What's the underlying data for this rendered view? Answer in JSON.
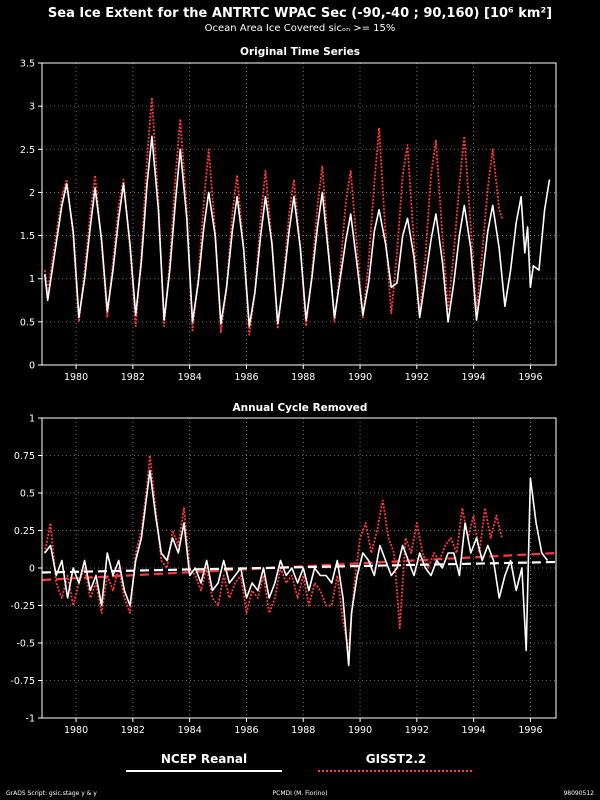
{
  "header": {
    "title": "Sea Ice Extent for the ANTRTC WPAC Sec (-90,-40 ; 90,160) [10⁶ km²]",
    "subtitle": "Ocean Area Ice Covered sicₒₙ >= 15%"
  },
  "legend": {
    "entries": [
      {
        "label": "NCEP Reanal",
        "color": "#ffffff",
        "style": "solid"
      },
      {
        "label": "GISST2.2",
        "color": "#ff3a3a",
        "style": "dotted"
      }
    ]
  },
  "footer": {
    "left": "GrADS Script: gsic.stage y & y",
    "center": "PCMDI (M. Fiorino)",
    "right": "98090512"
  },
  "chart_data": [
    {
      "type": "line",
      "title": "Original Time Series",
      "xlim": [
        1978.8,
        1996.9
      ],
      "ylim": [
        0,
        3.5
      ],
      "xticks": [
        "1980",
        "1982",
        "1984",
        "1986",
        "1988",
        "1990",
        "1992",
        "1994",
        "1996"
      ],
      "yticks": [
        "0",
        "0.5",
        "1",
        "1.5",
        "2",
        "2.5",
        "3",
        "3.5"
      ],
      "grid": true,
      "series": [
        {
          "name": "NCEP Reanal",
          "color": "#ffffff",
          "style": "solid",
          "x": [
            1978.9,
            1979.0,
            1979.25,
            1979.5,
            1979.67,
            1979.9,
            1980.1,
            1980.3,
            1980.5,
            1980.67,
            1980.9,
            1981.1,
            1981.3,
            1981.5,
            1981.67,
            1981.9,
            1982.1,
            1982.3,
            1982.5,
            1982.67,
            1982.9,
            1983.1,
            1983.3,
            1983.5,
            1983.67,
            1983.9,
            1984.1,
            1984.3,
            1984.5,
            1984.67,
            1984.9,
            1985.1,
            1985.3,
            1985.5,
            1985.67,
            1985.9,
            1986.1,
            1986.3,
            1986.5,
            1986.67,
            1986.9,
            1987.1,
            1987.3,
            1987.5,
            1987.67,
            1987.9,
            1988.1,
            1988.3,
            1988.5,
            1988.67,
            1988.9,
            1989.1,
            1989.3,
            1989.5,
            1989.67,
            1989.9,
            1990.1,
            1990.3,
            1990.5,
            1990.67,
            1990.9,
            1991.1,
            1991.3,
            1991.5,
            1991.67,
            1991.9,
            1992.1,
            1992.3,
            1992.5,
            1992.67,
            1992.9,
            1993.1,
            1993.3,
            1993.5,
            1993.67,
            1993.9,
            1994.1,
            1994.3,
            1994.5,
            1994.67,
            1994.9,
            1995.1,
            1995.3,
            1995.5,
            1995.67,
            1995.8,
            1995.9,
            1996.0,
            1996.1,
            1996.3,
            1996.5,
            1996.67
          ],
          "y": [
            1.05,
            0.75,
            1.3,
            1.85,
            2.1,
            1.55,
            0.55,
            1.0,
            1.6,
            2.05,
            1.45,
            0.62,
            1.1,
            1.7,
            2.1,
            1.4,
            0.58,
            1.2,
            2.1,
            2.65,
            1.8,
            0.52,
            1.1,
            1.9,
            2.5,
            1.7,
            0.5,
            0.95,
            1.6,
            2.0,
            1.5,
            0.48,
            0.9,
            1.55,
            1.95,
            1.35,
            0.45,
            0.85,
            1.5,
            1.95,
            1.4,
            0.48,
            0.95,
            1.55,
            1.95,
            1.35,
            0.52,
            1.0,
            1.6,
            2.0,
            1.25,
            0.55,
            1.0,
            1.45,
            1.75,
            1.15,
            0.58,
            0.95,
            1.55,
            1.8,
            1.4,
            0.9,
            0.95,
            1.5,
            1.7,
            1.25,
            0.55,
            1.0,
            1.45,
            1.75,
            1.2,
            0.5,
            0.95,
            1.5,
            1.85,
            1.35,
            0.52,
            1.0,
            1.55,
            1.85,
            1.35,
            0.68,
            1.1,
            1.65,
            1.95,
            1.3,
            1.6,
            0.9,
            1.15,
            1.1,
            1.8,
            2.15
          ]
        },
        {
          "name": "GISST2.2",
          "color": "#ff3a3a",
          "style": "dotted",
          "x": [
            1978.9,
            1979.0,
            1979.25,
            1979.5,
            1979.67,
            1979.9,
            1980.1,
            1980.3,
            1980.5,
            1980.67,
            1980.9,
            1981.1,
            1981.3,
            1981.5,
            1981.67,
            1981.9,
            1982.1,
            1982.3,
            1982.5,
            1982.67,
            1982.9,
            1983.1,
            1983.3,
            1983.5,
            1983.67,
            1983.9,
            1984.1,
            1984.3,
            1984.5,
            1984.67,
            1984.9,
            1985.1,
            1985.3,
            1985.5,
            1985.67,
            1985.9,
            1986.1,
            1986.3,
            1986.5,
            1986.67,
            1986.9,
            1987.1,
            1987.3,
            1987.5,
            1987.67,
            1987.9,
            1988.1,
            1988.3,
            1988.5,
            1988.67,
            1988.9,
            1989.1,
            1989.3,
            1989.5,
            1989.67,
            1989.9,
            1990.1,
            1990.3,
            1990.5,
            1990.67,
            1990.9,
            1991.1,
            1991.3,
            1991.5,
            1991.67,
            1991.9,
            1992.1,
            1992.3,
            1992.5,
            1992.67,
            1992.9,
            1993.1,
            1993.3,
            1993.5,
            1993.67,
            1993.9,
            1994.1,
            1994.3,
            1994.5,
            1994.67,
            1994.9,
            1995.0
          ],
          "y": [
            1.1,
            0.85,
            1.4,
            1.95,
            2.15,
            1.5,
            0.5,
            1.1,
            1.75,
            2.2,
            1.4,
            0.55,
            1.2,
            1.85,
            2.15,
            1.35,
            0.45,
            1.3,
            2.4,
            3.1,
            1.9,
            0.45,
            1.2,
            2.2,
            2.85,
            1.8,
            0.4,
            1.0,
            1.9,
            2.5,
            1.55,
            0.38,
            0.9,
            1.75,
            2.2,
            1.35,
            0.35,
            0.85,
            1.7,
            2.25,
            1.4,
            0.42,
            1.0,
            1.75,
            2.15,
            1.35,
            0.45,
            1.05,
            1.85,
            2.3,
            1.3,
            0.5,
            1.1,
            1.9,
            2.25,
            1.35,
            0.55,
            1.2,
            2.1,
            2.75,
            1.5,
            0.6,
            1.3,
            2.2,
            2.55,
            1.4,
            0.6,
            1.25,
            2.2,
            2.6,
            1.5,
            0.65,
            1.3,
            2.1,
            2.65,
            1.6,
            0.62,
            1.3,
            2.05,
            2.5,
            1.8,
            1.7
          ]
        }
      ]
    },
    {
      "type": "line",
      "title": "Annual Cycle Removed",
      "xlim": [
        1978.8,
        1996.9
      ],
      "ylim": [
        -1,
        1
      ],
      "xticks": [
        "1980",
        "1982",
        "1984",
        "1986",
        "1988",
        "1990",
        "1992",
        "1994",
        "1996"
      ],
      "yticks": [
        "-1",
        "-0.75",
        "-0.5",
        "-0.25",
        "0",
        "0.25",
        "0.5",
        "0.75",
        "1"
      ],
      "grid": true,
      "series": [
        {
          "name": "NCEP Reanal",
          "color": "#ffffff",
          "style": "solid",
          "x": [
            1978.9,
            1979.1,
            1979.3,
            1979.5,
            1979.7,
            1979.9,
            1980.1,
            1980.3,
            1980.5,
            1980.7,
            1980.9,
            1981.1,
            1981.3,
            1981.5,
            1981.7,
            1981.9,
            1982.1,
            1982.3,
            1982.5,
            1982.6,
            1982.8,
            1983.0,
            1983.2,
            1983.4,
            1983.6,
            1983.8,
            1984.0,
            1984.2,
            1984.4,
            1984.6,
            1984.8,
            1985.0,
            1985.2,
            1985.4,
            1985.6,
            1985.8,
            1986.0,
            1986.2,
            1986.4,
            1986.6,
            1986.8,
            1987.0,
            1987.2,
            1987.4,
            1987.6,
            1987.8,
            1988.0,
            1988.2,
            1988.4,
            1988.6,
            1988.8,
            1989.0,
            1989.2,
            1989.4,
            1989.6,
            1989.7,
            1989.9,
            1990.1,
            1990.3,
            1990.5,
            1990.7,
            1990.9,
            1991.1,
            1991.3,
            1991.5,
            1991.7,
            1991.9,
            1992.1,
            1992.3,
            1992.5,
            1992.7,
            1992.9,
            1993.1,
            1993.3,
            1993.5,
            1993.7,
            1993.9,
            1994.1,
            1994.3,
            1994.5,
            1994.7,
            1994.9,
            1995.1,
            1995.3,
            1995.5,
            1995.7,
            1995.85,
            1996.0,
            1996.2,
            1996.4,
            1996.6
          ],
          "y": [
            0.1,
            0.15,
            -0.05,
            0.05,
            -0.2,
            0.0,
            -0.1,
            0.05,
            -0.15,
            -0.05,
            -0.25,
            0.1,
            -0.05,
            0.05,
            -0.15,
            -0.25,
            0.05,
            0.2,
            0.5,
            0.65,
            0.35,
            0.1,
            0.05,
            0.2,
            0.1,
            0.3,
            -0.05,
            0.0,
            -0.1,
            0.05,
            -0.15,
            -0.1,
            0.05,
            -0.1,
            -0.05,
            0.0,
            -0.2,
            -0.1,
            -0.15,
            0.0,
            -0.2,
            -0.1,
            0.05,
            -0.05,
            0.0,
            -0.1,
            0.0,
            -0.15,
            0.0,
            -0.05,
            -0.05,
            -0.1,
            0.05,
            -0.2,
            -0.65,
            -0.3,
            -0.05,
            0.1,
            0.05,
            -0.05,
            0.15,
            0.05,
            -0.05,
            0.0,
            0.15,
            0.05,
            -0.05,
            0.1,
            0.0,
            -0.05,
            0.05,
            0.0,
            0.1,
            0.1,
            -0.05,
            0.3,
            0.1,
            0.2,
            0.05,
            0.15,
            0.05,
            -0.2,
            -0.05,
            0.05,
            -0.15,
            0.0,
            -0.55,
            0.6,
            0.3,
            0.1,
            0.05
          ]
        },
        {
          "name": "GISST2.2",
          "color": "#ff3a3a",
          "style": "dotted",
          "x": [
            1978.9,
            1979.1,
            1979.3,
            1979.5,
            1979.7,
            1979.9,
            1980.1,
            1980.3,
            1980.5,
            1980.7,
            1980.9,
            1981.1,
            1981.3,
            1981.5,
            1981.7,
            1981.9,
            1982.1,
            1982.3,
            1982.5,
            1982.6,
            1982.8,
            1983.0,
            1983.2,
            1983.4,
            1983.6,
            1983.8,
            1984.0,
            1984.2,
            1984.4,
            1984.6,
            1984.8,
            1985.0,
            1985.2,
            1985.4,
            1985.6,
            1985.8,
            1986.0,
            1986.2,
            1986.4,
            1986.6,
            1986.8,
            1987.0,
            1987.2,
            1987.4,
            1987.6,
            1987.8,
            1988.0,
            1988.2,
            1988.4,
            1988.6,
            1988.8,
            1989.0,
            1989.2,
            1989.4,
            1989.6,
            1989.8,
            1990.0,
            1990.2,
            1990.4,
            1990.6,
            1990.8,
            1991.0,
            1991.2,
            1991.4,
            1991.6,
            1991.8,
            1992.0,
            1992.2,
            1992.4,
            1992.6,
            1992.8,
            1993.0,
            1993.2,
            1993.4,
            1993.6,
            1993.8,
            1994.0,
            1994.2,
            1994.4,
            1994.6,
            1994.8,
            1995.0
          ],
          "y": [
            0.1,
            0.3,
            -0.1,
            -0.2,
            -0.05,
            -0.25,
            -0.1,
            0.0,
            -0.2,
            -0.1,
            -0.3,
            -0.05,
            -0.15,
            0.0,
            -0.2,
            -0.3,
            0.1,
            0.25,
            0.55,
            0.75,
            0.4,
            0.05,
            0.0,
            0.25,
            0.15,
            0.4,
            0.0,
            -0.05,
            -0.15,
            0.0,
            -0.2,
            -0.25,
            -0.05,
            -0.2,
            -0.1,
            -0.05,
            -0.3,
            -0.15,
            -0.2,
            -0.05,
            -0.3,
            -0.2,
            0.0,
            -0.1,
            -0.05,
            -0.2,
            -0.05,
            -0.25,
            -0.1,
            -0.15,
            -0.25,
            -0.25,
            -0.05,
            -0.35,
            -0.55,
            -0.1,
            0.2,
            0.3,
            0.1,
            0.25,
            0.45,
            0.2,
            0.1,
            -0.4,
            0.2,
            0.1,
            0.3,
            0.1,
            0.0,
            0.1,
            0.05,
            0.15,
            0.2,
            0.1,
            0.4,
            0.2,
            0.35,
            0.1,
            0.4,
            0.2,
            0.35,
            0.2
          ]
        },
        {
          "name": "NCEP Reanal trend",
          "color": "#ffffff",
          "style": "dashed",
          "x": [
            1978.8,
            1996.9
          ],
          "y": [
            -0.03,
            0.04
          ]
        },
        {
          "name": "GISST2.2 trend",
          "color": "#ff3a3a",
          "style": "dashed",
          "x": [
            1978.8,
            1996.9
          ],
          "y": [
            -0.08,
            0.1
          ]
        }
      ]
    }
  ]
}
